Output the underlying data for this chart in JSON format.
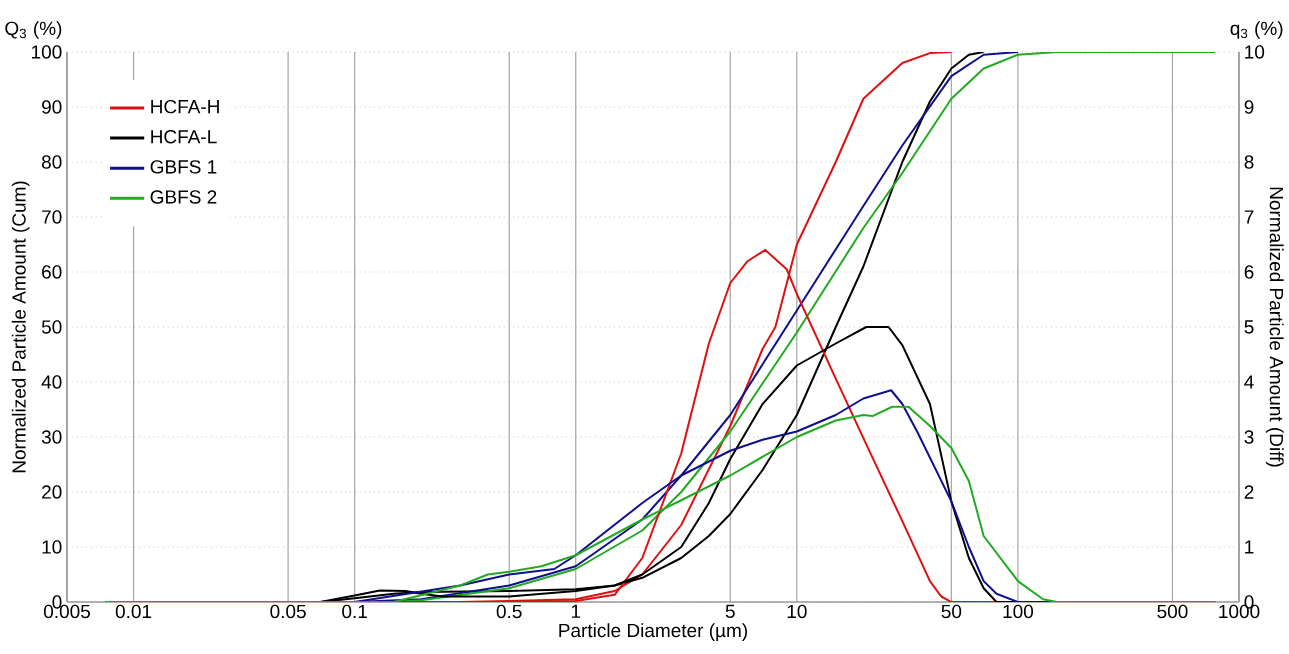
{
  "chart_data": {
    "type": "line",
    "xlabel": "Particle Diameter (µm)",
    "ylabel": "Normalized Particle Amount (Cum)",
    "y2label": "Normalized Particle Amount (Diff)",
    "annotations": [
      "Q$_{3}$ (%)",
      "q$_{3}$ (%)"
    ],
    "log": "x",
    "grid": true,
    "legend": "top left",
    "xlim": [
      0.005,
      1000
    ],
    "xticks": [
      0.005,
      0.01,
      0.05,
      0.1,
      0.5,
      1,
      5,
      10,
      50,
      100,
      500,
      1000
    ],
    "ylim": [
      0,
      100
    ],
    "yticks": [
      0,
      10,
      20,
      30,
      40,
      50,
      60,
      70,
      80,
      90,
      100
    ],
    "y2lim": [
      0,
      10
    ],
    "y2ticks": [
      0,
      1,
      2,
      3,
      4,
      5,
      6,
      7,
      8,
      9,
      10
    ],
    "series": [
      {
        "name": "HCFA-H",
        "color": "#dd1111",
        "x": [
          0.0075,
          0.3,
          0.5,
          1,
          1.5,
          2,
          3,
          5,
          7,
          8,
          10,
          15,
          20,
          30,
          40,
          50
        ],
        "values": [
          0,
          0,
          0.2,
          0.5,
          2,
          5,
          14,
          32,
          46,
          50,
          65,
          80,
          91.5,
          98,
          99.8,
          100
        ]
      },
      {
        "name": "HCFA-L",
        "color": "#000000",
        "x": [
          0.0075,
          0.07,
          0.1,
          0.15,
          0.2,
          0.5,
          1,
          1.5,
          2,
          3,
          4,
          5,
          7,
          10,
          15,
          20,
          30,
          40,
          50,
          60,
          70
        ],
        "values": [
          0,
          0,
          0.7,
          1.5,
          1.8,
          2.0,
          2.3,
          3,
          4.4,
          8,
          12,
          16,
          24,
          34,
          50,
          61,
          80,
          91,
          97,
          99.5,
          100
        ]
      },
      {
        "name": "GBFS 1",
        "color": "#10108c",
        "x": [
          0.0075,
          0.1,
          0.2,
          0.5,
          1,
          2,
          3,
          5,
          10,
          20,
          30,
          50,
          70,
          100
        ],
        "values": [
          0,
          0,
          0.5,
          3,
          6.5,
          15,
          23,
          34,
          53,
          72,
          83,
          95.6,
          99.5,
          100
        ]
      },
      {
        "name": "GBFS 2",
        "color": "#22aa22",
        "x": [
          0.0075,
          0.15,
          0.2,
          0.5,
          1,
          2,
          3,
          5,
          10,
          20,
          30,
          50,
          70,
          100,
          150,
          780
        ],
        "values": [
          0,
          0,
          0.3,
          2.5,
          6,
          13,
          20,
          31,
          49,
          68,
          78,
          91.5,
          97,
          99.5,
          100,
          100
        ]
      },
      {
        "axis": "y2",
        "color": "#dd1111",
        "x": [
          0.0075,
          0.5,
          1,
          1.5,
          2,
          3,
          4,
          5,
          6,
          7.2,
          9,
          10,
          15,
          20,
          30,
          40,
          45,
          50,
          780
        ],
        "values": [
          0,
          0,
          0.02,
          0.13,
          0.8,
          2.7,
          4.7,
          5.8,
          6.2,
          6.4,
          6.05,
          5.6,
          4.06,
          2.98,
          1.47,
          0.38,
          0.1,
          0,
          0
        ]
      },
      {
        "axis": "y2",
        "color": "#000000",
        "x": [
          0.0075,
          0.07,
          0.1,
          0.13,
          0.17,
          0.2,
          0.25,
          0.5,
          1,
          1.5,
          2,
          3,
          4,
          5,
          7,
          10,
          15,
          20.6,
          26,
          30,
          40,
          50,
          60,
          70,
          80,
          780
        ],
        "values": [
          0,
          0,
          0.12,
          0.21,
          0.2,
          0.15,
          0.1,
          0.1,
          0.2,
          0.3,
          0.5,
          1.0,
          1.8,
          2.6,
          3.6,
          4.3,
          4.7,
          5.0,
          5.0,
          4.67,
          3.6,
          1.83,
          0.8,
          0.25,
          0,
          0
        ]
      },
      {
        "axis": "y2",
        "color": "#10108c",
        "x": [
          0.0075,
          0.1,
          0.3,
          0.5,
          0.8,
          1,
          2,
          3,
          5,
          7,
          10,
          15,
          20,
          26.7,
          30,
          35,
          50,
          60,
          70,
          80,
          100,
          780
        ],
        "values": [
          0,
          0,
          0.3,
          0.5,
          0.6,
          0.85,
          1.8,
          2.3,
          2.75,
          2.95,
          3.1,
          3.4,
          3.7,
          3.85,
          3.6,
          3.1,
          1.83,
          1.0,
          0.38,
          0.15,
          0,
          0
        ]
      },
      {
        "axis": "y2",
        "color": "#22aa22",
        "x": [
          0.0075,
          0.15,
          0.3,
          0.4,
          0.5,
          0.7,
          1,
          2,
          3,
          5,
          10,
          15,
          20,
          22,
          27,
          32,
          40,
          50,
          60,
          70,
          100,
          130,
          150,
          780
        ],
        "values": [
          0,
          0,
          0.3,
          0.5,
          0.55,
          0.65,
          0.85,
          1.5,
          1.85,
          2.3,
          3.0,
          3.3,
          3.4,
          3.38,
          3.55,
          3.55,
          3.2,
          2.8,
          2.2,
          1.2,
          0.38,
          0.05,
          0,
          0
        ]
      }
    ]
  }
}
